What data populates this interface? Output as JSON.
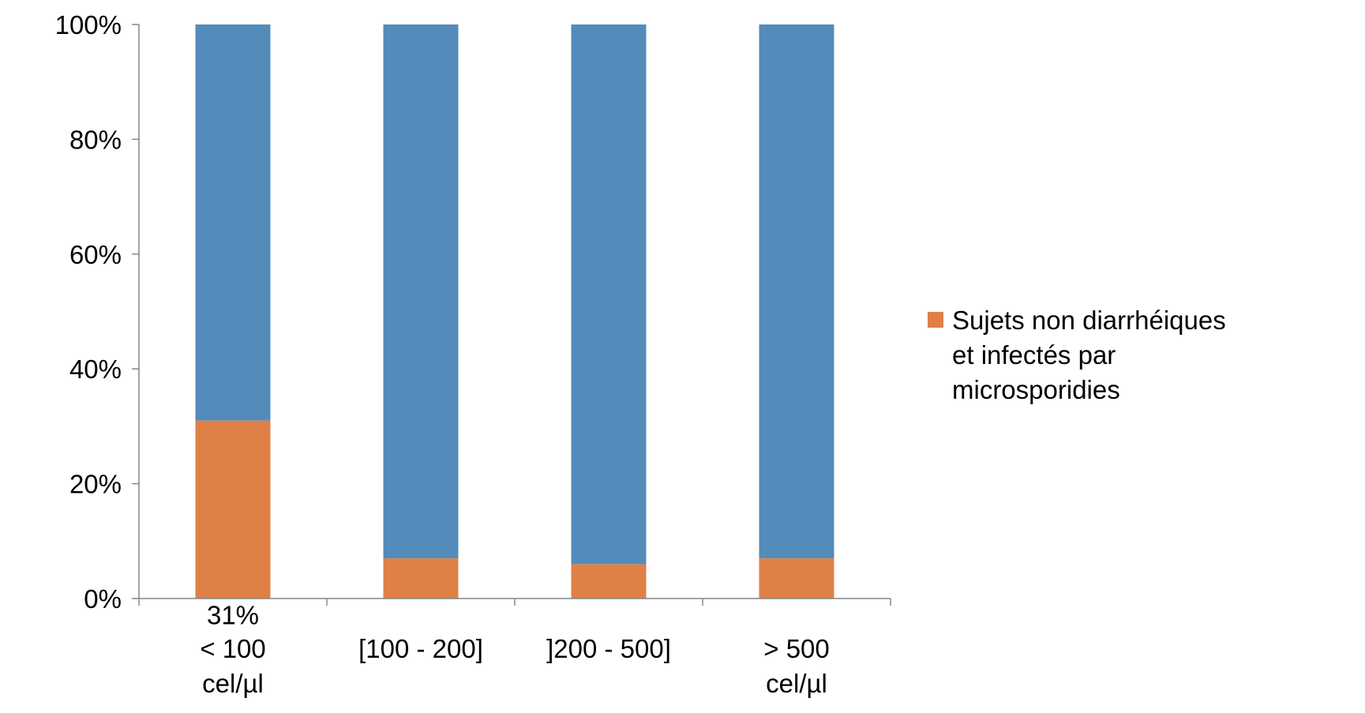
{
  "chart_data": {
    "type": "bar",
    "stacked": true,
    "normalized": true,
    "categories": [
      [
        "< 100",
        "cel/µl"
      ],
      [
        "[100 - 200]"
      ],
      [
        "]200 - 500]"
      ],
      [
        "> 500",
        "cel/µl"
      ]
    ],
    "series": [
      {
        "name": "Sujets non diarrhéiques et infectés par microsporidies",
        "legend_lines": [
          "Sujets non diarrhéiques",
          "et infectés par",
          "microsporidies"
        ],
        "color": "#DF8046",
        "values": [
          31,
          7,
          6,
          7
        ],
        "data_labels": [
          "31%",
          "",
          "",
          ""
        ]
      },
      {
        "color": "#538BBB",
        "values": [
          69,
          93,
          94,
          93
        ]
      }
    ],
    "y_ticks": [
      "0%",
      "20%",
      "40%",
      "60%",
      "80%",
      "100%"
    ],
    "ylim": [
      0,
      100
    ],
    "grid": false,
    "legend_position": "right"
  }
}
